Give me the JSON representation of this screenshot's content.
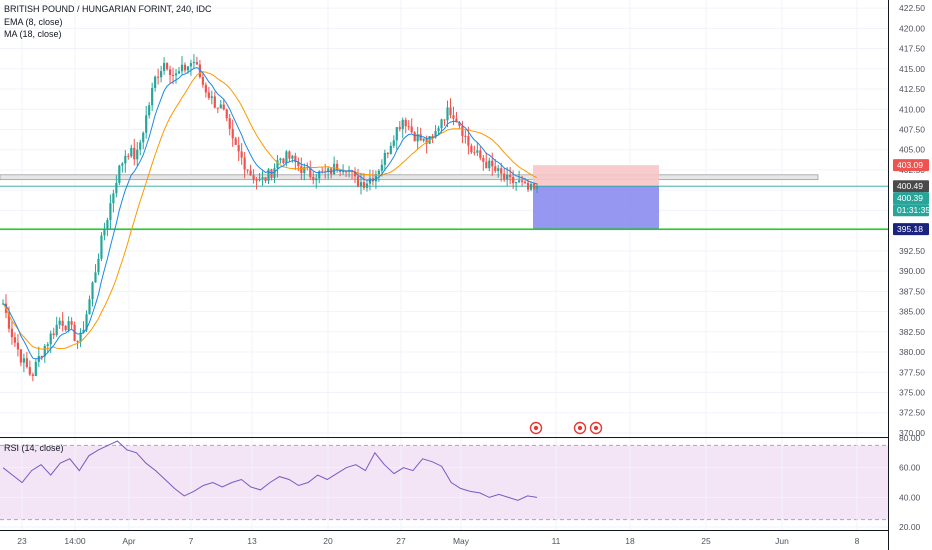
{
  "header": {
    "symbol_line": "BRITISH POUND / HUNGARIAN FORINT, 240, IDC",
    "ema_label": "EMA (8, close)",
    "ma_label": "MA (18, close)"
  },
  "rsi_pane": {
    "label": "RSI (14, close)"
  },
  "colors": {
    "up": "#26a69a",
    "down": "#ef5350",
    "ema": "#1e88e5",
    "ma": "#ff9800",
    "stop_zone": "#f7c6c6",
    "target_zone": "#8a8cf0",
    "support_line": "#00c800",
    "rsi_band": "#f3e5f5",
    "rsi_line": "#7e57c2"
  },
  "chart_data": [
    {
      "type": "candlestick",
      "title": "BRITISH POUND / HUNGARIAN FORINT, 240, IDC",
      "ylim": [
        369.5,
        423.5
      ],
      "y_ticks": [
        "422.50",
        "420.00",
        "417.50",
        "415.00",
        "412.50",
        "410.00",
        "407.50",
        "405.00",
        "402.50",
        "400.00",
        "397.50",
        "395.00",
        "392.50",
        "390.00",
        "387.50",
        "385.00",
        "382.50",
        "380.00",
        "377.50",
        "375.00",
        "372.50",
        "370.00"
      ],
      "x_ticks": [
        "23",
        "14:00",
        "Apr",
        "7",
        "13",
        "20",
        "27",
        "May",
        "11",
        "18",
        "25",
        "Jun",
        "8"
      ],
      "price_path": [
        386,
        382,
        379,
        377,
        380,
        382,
        384,
        383,
        381,
        386,
        392,
        397,
        402,
        405,
        404,
        409,
        414,
        416,
        414,
        415,
        416,
        413,
        411,
        410,
        406,
        404,
        402,
        401,
        402,
        404,
        404,
        403,
        402,
        402,
        402,
        403,
        403,
        401,
        401,
        402,
        404,
        407,
        409,
        407,
        406,
        406,
        409,
        410,
        408,
        405,
        404,
        403,
        402,
        401,
        401,
        400,
        400
      ],
      "ema_label": "EMA (8, close)",
      "ma_label": "MA (18, close)",
      "price_badges": [
        {
          "label": "403.09",
          "value": 403.09,
          "color": "#ef5350"
        },
        {
          "label": "400.49",
          "value": 400.49,
          "color": "#4a4a4a"
        },
        {
          "label": "400.39",
          "value": 400.39,
          "color": "#26a69a"
        },
        {
          "label": "01:31:35",
          "value": 399.2,
          "color": "#26a69a"
        },
        {
          "label": "395.18",
          "value": 395.18,
          "color": "#1a237e"
        }
      ],
      "long_position": {
        "entry": 400.49,
        "stop": 403.09,
        "target": 395.18
      },
      "support_zone": [
        401.3,
        401.9
      ],
      "support_line": 395.18,
      "event_markers": 3
    },
    {
      "type": "line",
      "title": "RSI (14, close)",
      "ylim": [
        18,
        80
      ],
      "y_ticks": [
        "80.00",
        "60.00",
        "40.00",
        "20.00"
      ],
      "band": [
        25,
        75
      ],
      "values": [
        60,
        55,
        50,
        58,
        62,
        55,
        63,
        66,
        58,
        68,
        72,
        75,
        78,
        72,
        70,
        63,
        58,
        52,
        46,
        41,
        44,
        48,
        50,
        47,
        50,
        52,
        47,
        45,
        50,
        54,
        52,
        48,
        50,
        55,
        52,
        56,
        60,
        62,
        58,
        70,
        62,
        56,
        60,
        58,
        66,
        64,
        61,
        50,
        46,
        44,
        43,
        40,
        42,
        40,
        38,
        41,
        40
      ]
    }
  ]
}
